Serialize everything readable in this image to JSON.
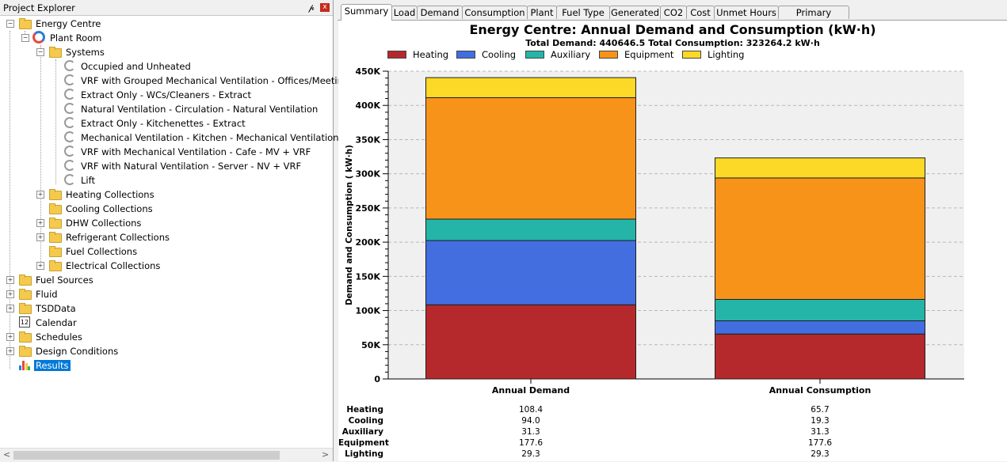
{
  "explorer": {
    "title": "Project Explorer",
    "pin": "ᵖ",
    "close": "x",
    "items": [
      {
        "label": "Energy Centre",
        "icon": "folder"
      },
      {
        "label": "Plant Room",
        "icon": "plant-room"
      },
      {
        "label": "Systems",
        "icon": "folder"
      },
      {
        "label": "Occupied and Unheated",
        "icon": "system"
      },
      {
        "label": "VRF with Grouped Mechanical Ventilation - Offices/Meeting",
        "icon": "system"
      },
      {
        "label": "Extract Only - WCs/Cleaners - Extract",
        "icon": "system"
      },
      {
        "label": "Natural Ventilation - Circulation - Natural Ventilation",
        "icon": "system"
      },
      {
        "label": "Extract Only - Kitchenettes - Extract",
        "icon": "system"
      },
      {
        "label": "Mechanical Ventilation - Kitchen - Mechanical Ventilation",
        "icon": "system"
      },
      {
        "label": "VRF with Mechanical Ventilation - Cafe - MV + VRF",
        "icon": "system"
      },
      {
        "label": "VRF with Natural Ventilation - Server - NV + VRF",
        "icon": "system"
      },
      {
        "label": "Lift",
        "icon": "system"
      },
      {
        "label": "Heating Collections",
        "icon": "folder"
      },
      {
        "label": "Cooling Collections",
        "icon": "folder"
      },
      {
        "label": "DHW Collections",
        "icon": "folder"
      },
      {
        "label": "Refrigerant Collections",
        "icon": "folder"
      },
      {
        "label": "Fuel Collections",
        "icon": "folder"
      },
      {
        "label": "Electrical Collections",
        "icon": "folder"
      },
      {
        "label": "Fuel Sources",
        "icon": "folder"
      },
      {
        "label": "Fluid",
        "icon": "folder"
      },
      {
        "label": "TSDData",
        "icon": "folder"
      },
      {
        "label": "Calendar",
        "icon": "calendar",
        "icon_text": "12"
      },
      {
        "label": "Schedules",
        "icon": "folder"
      },
      {
        "label": "Design Conditions",
        "icon": "folder"
      },
      {
        "label": "Results",
        "icon": "results",
        "selected": true
      }
    ],
    "scroll_left": "<",
    "scroll_right": ">"
  },
  "tabs": [
    {
      "label": "Summary",
      "active": true
    },
    {
      "label": "Load"
    },
    {
      "label": "Demand"
    },
    {
      "label": "Consumption"
    },
    {
      "label": "Plant"
    },
    {
      "label": "Fuel Type"
    },
    {
      "label": "Generated"
    },
    {
      "label": "CO2"
    },
    {
      "label": "Cost"
    },
    {
      "label": "Unmet Hours"
    },
    {
      "label": "Primary Energy"
    }
  ],
  "chart_data": {
    "type": "bar",
    "stacked": true,
    "title": "Energy Centre: Annual Demand and Consumption (kW·h)",
    "subtitle": "Total Demand: 440646.5  Total Consumption: 323264.2 kW·h",
    "xlabel": "",
    "ylabel": "Demand and Consumption ( kW·h)",
    "categories": [
      "Annual Demand",
      "Annual Consumption"
    ],
    "series": [
      {
        "name": "Heating",
        "color": "#b5292c",
        "values": [
          108400,
          65700
        ]
      },
      {
        "name": "Cooling",
        "color": "#426ee0",
        "values": [
          94000,
          19300
        ]
      },
      {
        "name": "Auxiliary",
        "color": "#25b5a8",
        "values": [
          31300,
          31300
        ]
      },
      {
        "name": "Equipment",
        "color": "#f8931a",
        "values": [
          177600,
          177600
        ]
      },
      {
        "name": "Lighting",
        "color": "#fbd926",
        "values": [
          29300,
          29300
        ]
      }
    ],
    "ylim": [
      0,
      450000
    ],
    "yticks": [
      "0",
      "50K",
      "100K",
      "150K",
      "200K",
      "250K",
      "300K",
      "350K",
      "400K",
      "450K"
    ],
    "legend_position": "top",
    "grid": true,
    "table": {
      "rows": [
        "Heating",
        "Cooling",
        "Auxiliary",
        "Equipment",
        "Lighting"
      ],
      "columns": [
        [
          "108.4",
          "94.0",
          "31.3",
          "177.6",
          "29.3"
        ],
        [
          "65.7",
          "19.3",
          "31.3",
          "177.6",
          "29.3"
        ]
      ]
    }
  }
}
